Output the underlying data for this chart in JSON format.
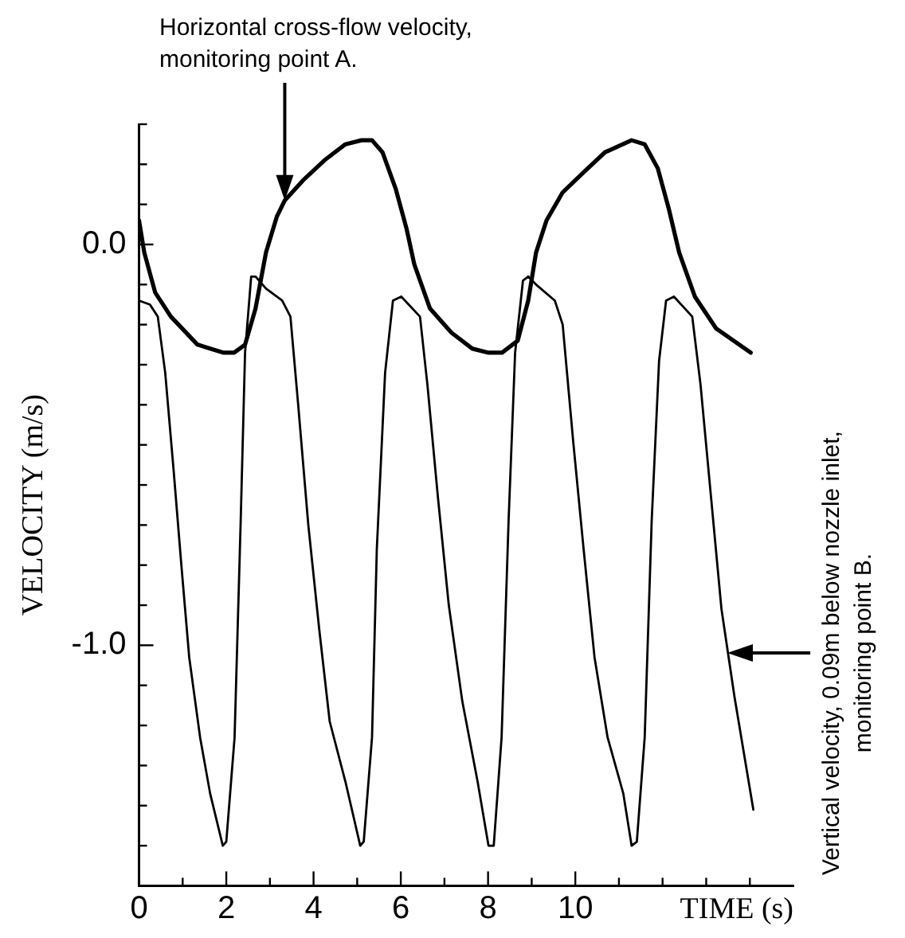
{
  "chart_data": {
    "type": "line",
    "xlabel": "TIME (s)",
    "ylabel": "VELOCITY (m/s)",
    "xlim": [
      0,
      15
    ],
    "ylim": [
      -1.6,
      0.3
    ],
    "xticks": [
      0,
      {
        "value": 1,
        "label": null
      },
      2,
      {
        "value": 3,
        "label": null
      },
      4,
      {
        "value": 5,
        "label": null
      },
      6,
      {
        "value": 7,
        "label": null
      },
      8,
      {
        "value": 9,
        "label": null
      },
      10,
      {
        "value": 11,
        "label": null
      },
      {
        "value": 12,
        "label": null
      },
      {
        "value": 13,
        "label": null
      },
      {
        "value": 14,
        "label": null
      }
    ],
    "yticks": [
      {
        "value": 0.3,
        "label": null
      },
      {
        "value": 0.2,
        "label": null
      },
      {
        "value": 0.1,
        "label": null
      },
      {
        "value": 0,
        "label": "0.0"
      },
      {
        "value": -0.1,
        "label": null
      },
      {
        "value": -0.2,
        "label": null
      },
      {
        "value": -0.3,
        "label": null
      },
      {
        "value": -0.4,
        "label": null
      },
      {
        "value": -0.5,
        "label": null
      },
      {
        "value": -0.6,
        "label": null
      },
      {
        "value": -0.7,
        "label": null
      },
      {
        "value": -0.8,
        "label": null
      },
      {
        "value": -0.9,
        "label": null
      },
      {
        "value": -1,
        "label": "-1.0"
      },
      {
        "value": -1.1,
        "label": null
      },
      {
        "value": -1.2,
        "label": null
      },
      {
        "value": -1.3,
        "label": null
      },
      {
        "value": -1.4,
        "label": null
      },
      {
        "value": -1.5,
        "label": null
      }
    ],
    "marker": "none",
    "line_style": "solid",
    "series": [
      {
        "color": "#000000",
        "x": [
          0,
          0.12,
          0.37,
          0.73,
          1.34,
          1.94,
          2.18,
          2.43,
          2.67,
          2.91,
          3.16,
          3.34,
          3.76,
          4.25,
          4.73,
          5.1,
          5.34,
          5.58,
          5.88,
          6.13,
          6.31,
          6.67,
          7.16,
          7.64,
          8.01,
          8.32,
          8.68,
          8.92,
          9.1,
          9.34,
          9.71,
          10.19,
          10.68,
          11.29,
          11.59,
          11.89,
          12.14,
          12.38,
          12.74,
          13.23,
          14.02
        ],
        "values": [
          0.06,
          -0.02,
          -0.12,
          -0.18,
          -0.25,
          -0.27,
          -0.27,
          -0.25,
          -0.16,
          -0.02,
          0.07,
          0.11,
          0.16,
          0.21,
          0.25,
          0.26,
          0.26,
          0.23,
          0.14,
          0.04,
          -0.05,
          -0.16,
          -0.22,
          -0.26,
          -0.27,
          -0.27,
          -0.24,
          -0.14,
          -0.02,
          0.06,
          0.13,
          0.18,
          0.23,
          0.26,
          0.25,
          0.19,
          0.09,
          -0.02,
          -0.13,
          -0.21,
          -0.27
        ]
      },
      {
        "color": "#000000",
        "x": [
          0,
          0.25,
          0.43,
          0.6,
          0.79,
          0.97,
          1.15,
          1.4,
          1.63,
          1.92,
          2.0,
          2.19,
          2.33,
          2.43,
          2.57,
          2.67,
          2.91,
          3.28,
          3.47,
          3.64,
          3.88,
          4.13,
          4.37,
          4.73,
          5.07,
          5.15,
          5.34,
          5.45,
          5.64,
          5.82,
          6.01,
          6.44,
          6.61,
          6.85,
          7.1,
          7.41,
          7.76,
          8.01,
          8.13,
          8.31,
          8.47,
          8.62,
          8.8,
          8.92,
          9.1,
          9.53,
          9.71,
          9.95,
          10.19,
          10.44,
          10.74,
          11.1,
          11.29,
          11.41,
          11.59,
          11.75,
          11.92,
          12.08,
          12.26,
          12.68,
          12.87,
          13.11,
          13.35,
          13.65,
          14.08
        ],
        "values": [
          -0.14,
          -0.15,
          -0.18,
          -0.32,
          -0.56,
          -0.8,
          -1.03,
          -1.23,
          -1.37,
          -1.5,
          -1.49,
          -1.23,
          -0.69,
          -0.27,
          -0.08,
          -0.08,
          -0.11,
          -0.14,
          -0.18,
          -0.39,
          -0.7,
          -0.96,
          -1.19,
          -1.34,
          -1.5,
          -1.49,
          -1.23,
          -0.76,
          -0.32,
          -0.14,
          -0.13,
          -0.18,
          -0.35,
          -0.63,
          -0.9,
          -1.14,
          -1.34,
          -1.5,
          -1.5,
          -1.23,
          -0.69,
          -0.27,
          -0.09,
          -0.08,
          -0.1,
          -0.14,
          -0.2,
          -0.49,
          -0.76,
          -1.03,
          -1.23,
          -1.37,
          -1.5,
          -1.49,
          -1.23,
          -0.69,
          -0.29,
          -0.14,
          -0.13,
          -0.18,
          -0.35,
          -0.63,
          -0.91,
          -1.13,
          -1.41
        ]
      }
    ],
    "annotations": [
      "Horizontal cross-flow velocity,\nmonitoring point A.",
      "Vertical velocity, 0.09m below nozzle inlet,\nmonitoring point B."
    ]
  }
}
